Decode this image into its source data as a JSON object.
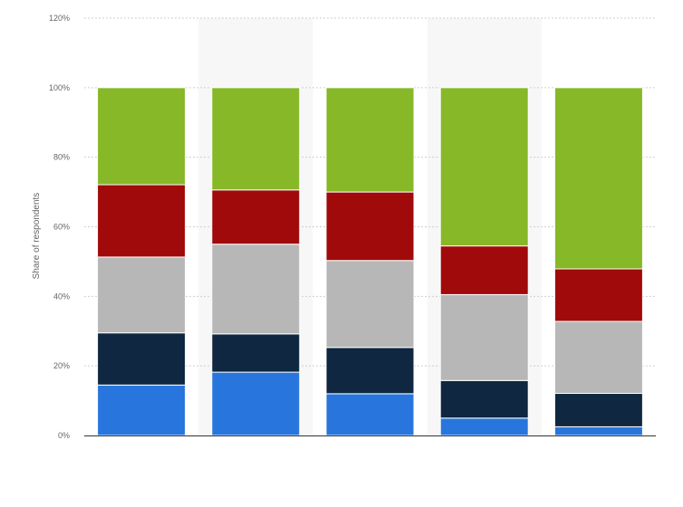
{
  "chart_data": {
    "type": "bar",
    "stacked": true,
    "categories": [
      "",
      "",
      "",
      "",
      ""
    ],
    "series": [
      {
        "values": [
          14.5,
          18.2,
          12.0,
          5.0,
          2.5
        ]
      },
      {
        "values": [
          15.0,
          11.0,
          13.3,
          10.8,
          9.6
        ]
      },
      {
        "values": [
          21.8,
          25.8,
          25.0,
          24.7,
          20.7
        ]
      },
      {
        "values": [
          20.8,
          15.6,
          19.7,
          14.0,
          15.1
        ]
      },
      {
        "values": [
          27.9,
          29.4,
          30.0,
          45.5,
          52.1
        ]
      }
    ],
    "colors": [
      "#2876dd",
      "#0f2740",
      "#b7b7b7",
      "#a10a0a",
      "#86b828"
    ],
    "title": "",
    "xlabel": "",
    "ylabel": "Share of respondents",
    "ylim": [
      0,
      120
    ],
    "yticks": [
      "0%",
      "20%",
      "40%",
      "60%",
      "80%",
      "100%",
      "120%"
    ],
    "grid": true,
    "legend": "none",
    "band_color": "#f7f7f7"
  }
}
